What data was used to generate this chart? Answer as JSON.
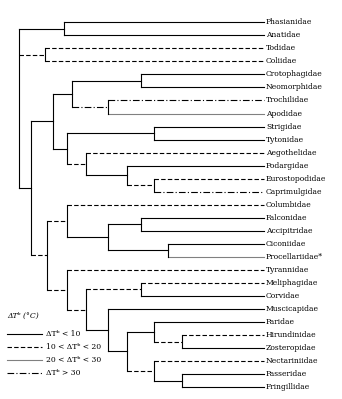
{
  "figsize": [
    3.42,
    3.99
  ],
  "dpi": 100,
  "taxa": [
    "Phasianidae",
    "Anatidae",
    "Todidae",
    "Coliidae",
    "Crotophagidae",
    "Neomorphidae",
    "Trochilidae",
    "Apodidae",
    "Strigidae",
    "Tytonidae",
    "Aegothelidae",
    "Podargidae",
    "Eurostopodidae",
    "Caprimulgidae",
    "Columbidae",
    "Falconidae",
    "Accipitridae",
    "Ciconiidae",
    "Procellariidae*",
    "Tyrannidae",
    "Meliphagidae",
    "Corvidae",
    "Muscicapidae",
    "Paridae",
    "Hirundinidae",
    "Zosteropidae",
    "Nectariniidae",
    "Passeridae",
    "Fringillidae"
  ],
  "line_styles": {
    "Phasianidae": [
      "solid",
      "black"
    ],
    "Anatidae": [
      "solid",
      "black"
    ],
    "Todidae": [
      "dashed",
      "black"
    ],
    "Coliidae": [
      "dashed",
      "black"
    ],
    "Crotophagidae": [
      "solid",
      "black"
    ],
    "Neomorphidae": [
      "solid",
      "black"
    ],
    "Trochilidae": [
      "dashdot",
      "black"
    ],
    "Apodidae": [
      "solid",
      "gray"
    ],
    "Strigidae": [
      "solid",
      "black"
    ],
    "Tytonidae": [
      "solid",
      "black"
    ],
    "Aegothelidae": [
      "dashed",
      "black"
    ],
    "Podargidae": [
      "solid",
      "black"
    ],
    "Eurostopodidae": [
      "dashed",
      "black"
    ],
    "Caprimulgidae": [
      "dashdot",
      "black"
    ],
    "Columbidae": [
      "dashed",
      "black"
    ],
    "Falconidae": [
      "solid",
      "black"
    ],
    "Accipitridae": [
      "solid",
      "black"
    ],
    "Ciconiidae": [
      "solid",
      "black"
    ],
    "Procellariidae*": [
      "solid",
      "gray"
    ],
    "Tyrannidae": [
      "dashed",
      "black"
    ],
    "Meliphagidae": [
      "dashed",
      "black"
    ],
    "Corvidae": [
      "solid",
      "black"
    ],
    "Muscicapidae": [
      "solid",
      "black"
    ],
    "Paridae": [
      "solid",
      "black"
    ],
    "Hirundinidae": [
      "dashed",
      "black"
    ],
    "Zosteropidae": [
      "solid",
      "black"
    ],
    "Nectariniidae": [
      "dashed",
      "black"
    ],
    "Passeridae": [
      "solid",
      "black"
    ],
    "Fringillidae": [
      "solid",
      "black"
    ]
  },
  "legend_title": "ΔTᵇ (°C)",
  "legend_entries": [
    {
      "label": "ΔTᵇ < 10",
      "style": "solid",
      "color": "black"
    },
    {
      "label": "10 < ΔTᵇ < 20",
      "style": "dashed",
      "color": "black"
    },
    {
      "label": "20 < ΔTᵇ < 30",
      "style": "solid",
      "color": "gray"
    },
    {
      "label": "ΔTᵇ > 30",
      "style": "dashdot",
      "color": "black"
    }
  ]
}
